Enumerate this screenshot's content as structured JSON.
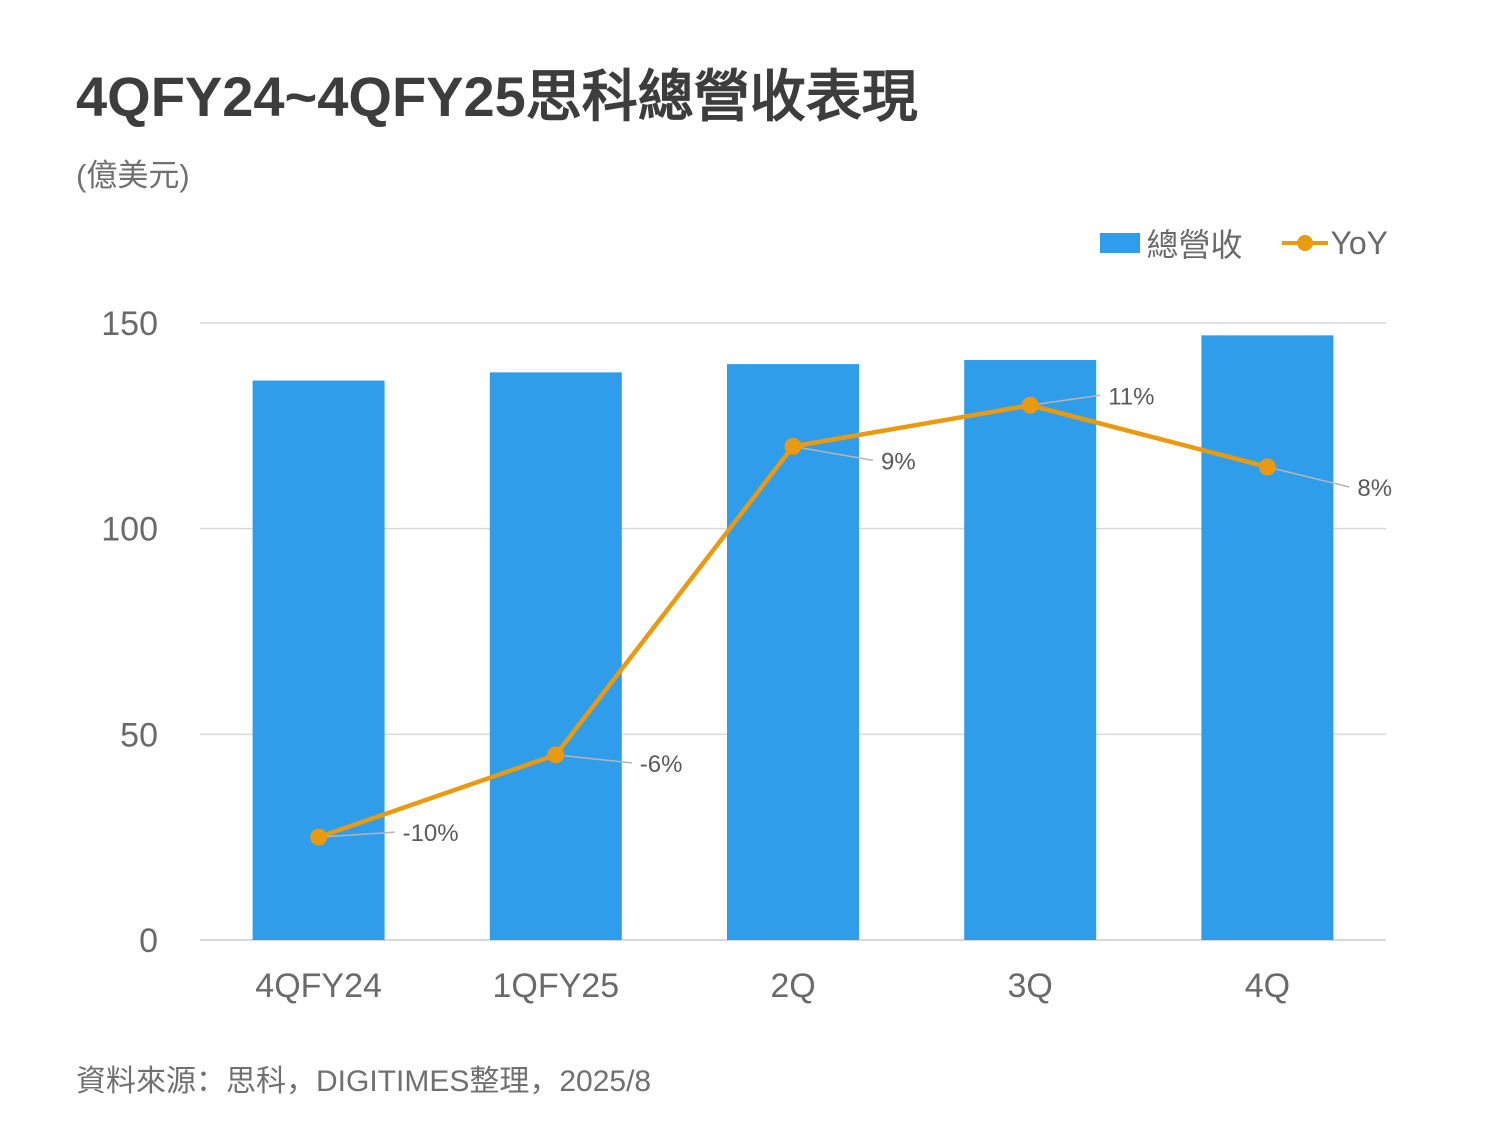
{
  "title": "4QFY24~4QFY25思科總營收表現",
  "unit_label": "(億美元)",
  "source": "資料來源：思科，DIGITIMES整理，2025/8",
  "colors": {
    "bar": "#309DEB",
    "line": "#EA9A10",
    "grid": "#d9d9d9",
    "leader": "#b5b5b5"
  },
  "chart_data": {
    "type": "bar",
    "categories": [
      "4QFY24",
      "1QFY25",
      "2Q",
      "3Q",
      "4Q"
    ],
    "ylim": [
      0,
      150
    ],
    "y_ticks": [
      "0",
      "50",
      "100",
      "150"
    ],
    "y2lim": [
      -15,
      15
    ],
    "grid": true,
    "legend_position": "top-right",
    "series": [
      {
        "name": "總營收",
        "type": "bar",
        "axis": "primary",
        "values": [
          136,
          138,
          140,
          141,
          147
        ]
      },
      {
        "name": "YoY",
        "type": "line",
        "axis": "secondary",
        "values": [
          -10,
          -6,
          9,
          11,
          8
        ],
        "labels": [
          "-10%",
          "-6%",
          "9%",
          "11%",
          "8%"
        ]
      }
    ]
  }
}
